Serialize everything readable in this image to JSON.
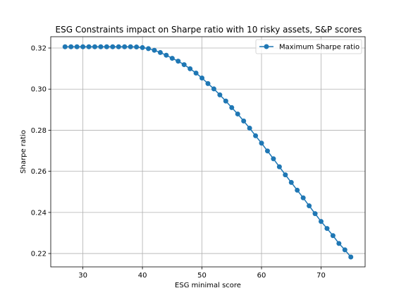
{
  "chart_data": {
    "type": "line",
    "title": "ESG Constraints impact on Sharpe ratio with 10 risky assets, S&P scores",
    "xlabel": "ESG minimal score",
    "ylabel": "Sharpe ratio",
    "xlim": [
      24.6,
      77.4
    ],
    "ylim": [
      0.2135,
      0.3255
    ],
    "xticks": [
      30,
      40,
      50,
      60,
      70
    ],
    "yticks": [
      0.22,
      0.24,
      0.26,
      0.28,
      0.3,
      0.32
    ],
    "ytick_labels": [
      "0.22",
      "0.24",
      "0.26",
      "0.28",
      "0.30",
      "0.32"
    ],
    "grid": true,
    "legend_position": "upper right",
    "series": [
      {
        "name": "Maximum Sharpe ratio",
        "color": "#1f77b4",
        "marker": "circle",
        "x": [
          27,
          28,
          29,
          30,
          31,
          32,
          33,
          34,
          35,
          36,
          37,
          38,
          39,
          40,
          41,
          42,
          43,
          44,
          45,
          46,
          47,
          48,
          49,
          50,
          51,
          52,
          53,
          54,
          55,
          56,
          57,
          58,
          59,
          60,
          61,
          62,
          63,
          64,
          65,
          66,
          67,
          68,
          69,
          70,
          71,
          72,
          73,
          74,
          75
        ],
        "y": [
          0.3206,
          0.3206,
          0.3206,
          0.3206,
          0.3206,
          0.3206,
          0.3206,
          0.3206,
          0.3206,
          0.3206,
          0.3206,
          0.3206,
          0.3205,
          0.3202,
          0.3197,
          0.3189,
          0.3178,
          0.3165,
          0.315,
          0.3136,
          0.3119,
          0.3099,
          0.3078,
          0.3054,
          0.3027,
          0.3001,
          0.2972,
          0.2942,
          0.291,
          0.2879,
          0.2845,
          0.281,
          0.2773,
          0.2737,
          0.2699,
          0.2661,
          0.2622,
          0.2583,
          0.2546,
          0.2508,
          0.2471,
          0.2432,
          0.2394,
          0.2356,
          0.2322,
          0.2287,
          0.2249,
          0.2218,
          0.2183
        ]
      }
    ]
  }
}
